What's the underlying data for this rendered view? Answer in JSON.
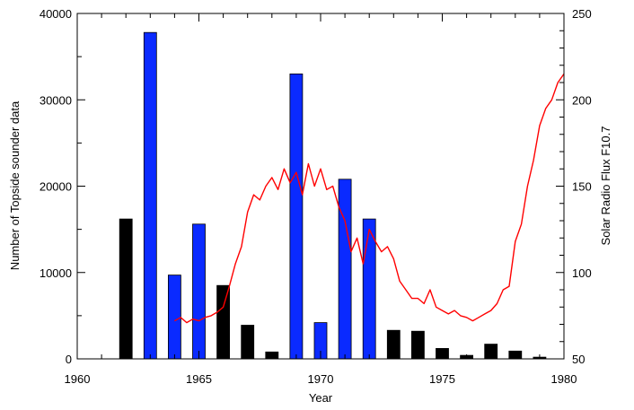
{
  "chart_data": {
    "type": "bar",
    "title": "",
    "xlabel": "Year",
    "ylabel": "Number of Topside sounder data",
    "y2label": "Solar Radio Flux F10.7",
    "xlim": [
      1960,
      1980
    ],
    "ylim": [
      0,
      40000
    ],
    "y2lim": [
      50,
      250
    ],
    "xticks": [
      1960,
      1965,
      1970,
      1975,
      1980
    ],
    "xtick_labels": [
      "1960",
      "1965",
      "1970",
      "1975",
      "1980"
    ],
    "yticks": [
      0,
      10000,
      20000,
      30000,
      40000
    ],
    "ytick_labels": [
      "0",
      "10000",
      "20000",
      "30000",
      "40000"
    ],
    "y2ticks": [
      50,
      100,
      150,
      200,
      250
    ],
    "y2tick_labels": [
      "50",
      "100",
      "150",
      "200",
      "250"
    ],
    "grid": false,
    "legend": "none",
    "bar_colors": {
      "black": "#000000",
      "blue": "#0a2aff"
    },
    "line_color": "#ff0000",
    "bars": [
      {
        "year": 1962,
        "value": 16200,
        "color": "black"
      },
      {
        "year": 1963,
        "value": 37800,
        "color": "blue"
      },
      {
        "year": 1964,
        "value": 9700,
        "color": "blue"
      },
      {
        "year": 1965,
        "value": 15600,
        "color": "blue"
      },
      {
        "year": 1966,
        "value": 8500,
        "color": "black"
      },
      {
        "year": 1967,
        "value": 3900,
        "color": "black"
      },
      {
        "year": 1968,
        "value": 800,
        "color": "black"
      },
      {
        "year": 1969,
        "value": 33000,
        "color": "blue"
      },
      {
        "year": 1970,
        "value": 4200,
        "color": "blue"
      },
      {
        "year": 1971,
        "value": 20800,
        "color": "blue"
      },
      {
        "year": 1972,
        "value": 16200,
        "color": "blue"
      },
      {
        "year": 1973,
        "value": 3300,
        "color": "black"
      },
      {
        "year": 1974,
        "value": 3200,
        "color": "black"
      },
      {
        "year": 1975,
        "value": 1200,
        "color": "black"
      },
      {
        "year": 1976,
        "value": 400,
        "color": "black"
      },
      {
        "year": 1977,
        "value": 1700,
        "color": "black"
      },
      {
        "year": 1978,
        "value": 900,
        "color": "black"
      },
      {
        "year": 1979,
        "value": 200,
        "color": "black"
      }
    ],
    "flux_series": {
      "name": "Solar Radio Flux F10.7",
      "x": [
        1964.0,
        1964.25,
        1964.5,
        1964.75,
        1965.0,
        1965.25,
        1965.5,
        1965.75,
        1966.0,
        1966.25,
        1966.5,
        1966.75,
        1967.0,
        1967.25,
        1967.5,
        1967.75,
        1968.0,
        1968.25,
        1968.5,
        1968.75,
        1969.0,
        1969.25,
        1969.5,
        1969.75,
        1970.0,
        1970.25,
        1970.5,
        1970.75,
        1971.0,
        1971.25,
        1971.5,
        1971.75,
        1972.0,
        1972.25,
        1972.5,
        1972.75,
        1973.0,
        1973.25,
        1973.5,
        1973.75,
        1974.0,
        1974.25,
        1974.5,
        1974.75,
        1975.0,
        1975.25,
        1975.5,
        1975.75,
        1976.0,
        1976.25,
        1976.5,
        1976.75,
        1977.0,
        1977.25,
        1977.5,
        1977.75,
        1978.0,
        1978.25,
        1978.5,
        1978.75,
        1979.0,
        1979.25,
        1979.5,
        1979.75,
        1980.0
      ],
      "y": [
        72,
        74,
        71,
        73,
        72,
        74,
        75,
        77,
        80,
        92,
        105,
        115,
        135,
        145,
        142,
        150,
        155,
        148,
        160,
        152,
        158,
        145,
        163,
        150,
        160,
        148,
        150,
        138,
        130,
        112,
        120,
        105,
        125,
        118,
        112,
        115,
        108,
        95,
        90,
        85,
        85,
        82,
        90,
        80,
        78,
        76,
        78,
        75,
        74,
        72,
        74,
        76,
        78,
        82,
        90,
        92,
        118,
        128,
        150,
        165,
        185,
        195,
        200,
        210,
        215
      ]
    }
  }
}
